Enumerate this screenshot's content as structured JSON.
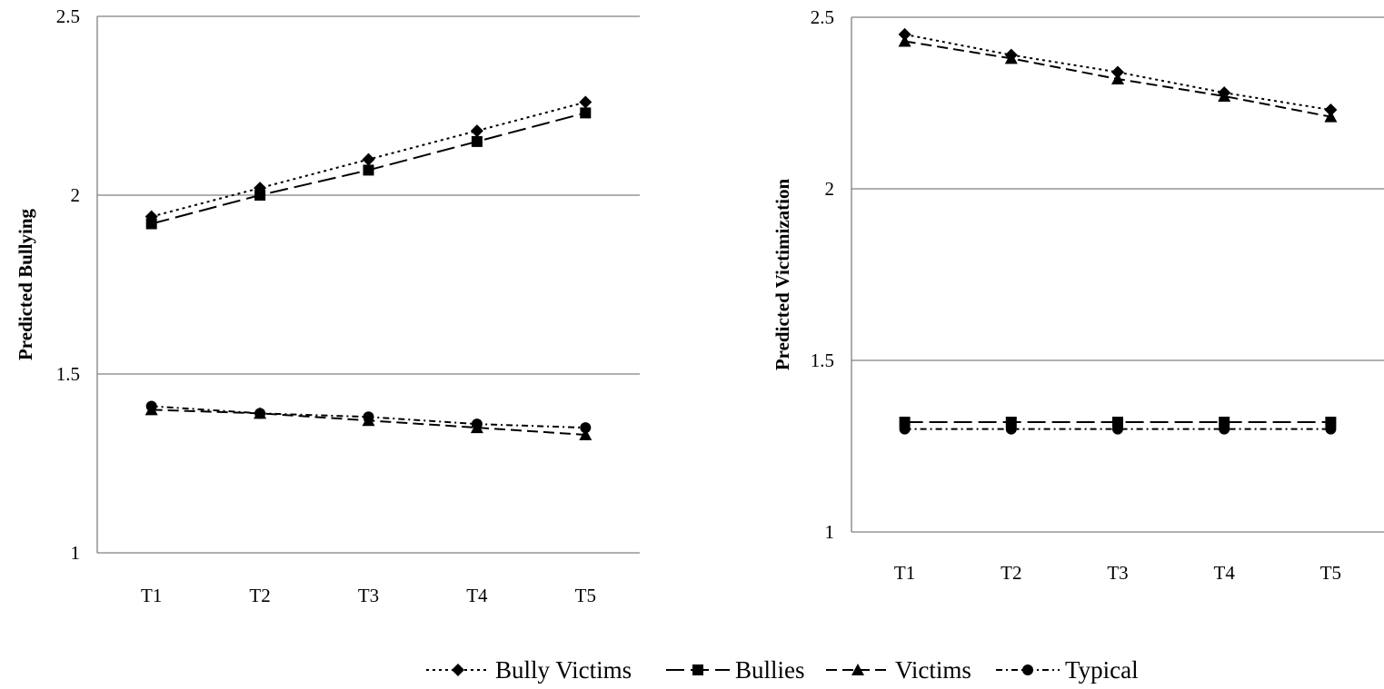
{
  "chart_data": [
    {
      "type": "line",
      "ylabel": "Predicted Bullying",
      "categories": [
        "T1",
        "T2",
        "T3",
        "T4",
        "T5"
      ],
      "ylim": [
        1,
        2.5
      ],
      "yticks": [
        "1",
        "1.5",
        "2",
        "2.5"
      ],
      "grid": true,
      "series": [
        {
          "name": "Bully Victims",
          "values": [
            1.94,
            2.02,
            2.1,
            2.18,
            2.26
          ]
        },
        {
          "name": "Bullies",
          "values": [
            1.92,
            2.0,
            2.07,
            2.15,
            2.23
          ]
        },
        {
          "name": "Victims",
          "values": [
            1.4,
            1.39,
            1.37,
            1.35,
            1.33
          ]
        },
        {
          "name": "Typical",
          "values": [
            1.41,
            1.39,
            1.38,
            1.36,
            1.35
          ]
        }
      ]
    },
    {
      "type": "line",
      "ylabel": "Predicted Victimization",
      "categories": [
        "T1",
        "T2",
        "T3",
        "T4",
        "T5"
      ],
      "ylim": [
        1,
        2.5
      ],
      "yticks": [
        "1",
        "1.5",
        "2",
        "2.5"
      ],
      "grid": true,
      "series": [
        {
          "name": "Bully Victims",
          "values": [
            2.45,
            2.39,
            2.34,
            2.28,
            2.23
          ]
        },
        {
          "name": "Bullies",
          "values": [
            1.32,
            1.32,
            1.32,
            1.32,
            1.32
          ]
        },
        {
          "name": "Victims",
          "values": [
            2.43,
            2.38,
            2.32,
            2.27,
            2.21
          ]
        },
        {
          "name": "Typical",
          "values": [
            1.3,
            1.3,
            1.3,
            1.3,
            1.3
          ]
        }
      ]
    }
  ],
  "legend": {
    "position": "bottom",
    "items": [
      {
        "label": "Bully Victims",
        "marker": "diamond",
        "dash": "dotted"
      },
      {
        "label": "Bullies",
        "marker": "square",
        "dash": "long-dash"
      },
      {
        "label": "Victims",
        "marker": "triangle",
        "dash": "dash"
      },
      {
        "label": "Typical",
        "marker": "circle",
        "dash": "dash-dot"
      }
    ]
  },
  "colors": {
    "line": "#000000",
    "grid": "#808080",
    "axis": "#808080"
  }
}
